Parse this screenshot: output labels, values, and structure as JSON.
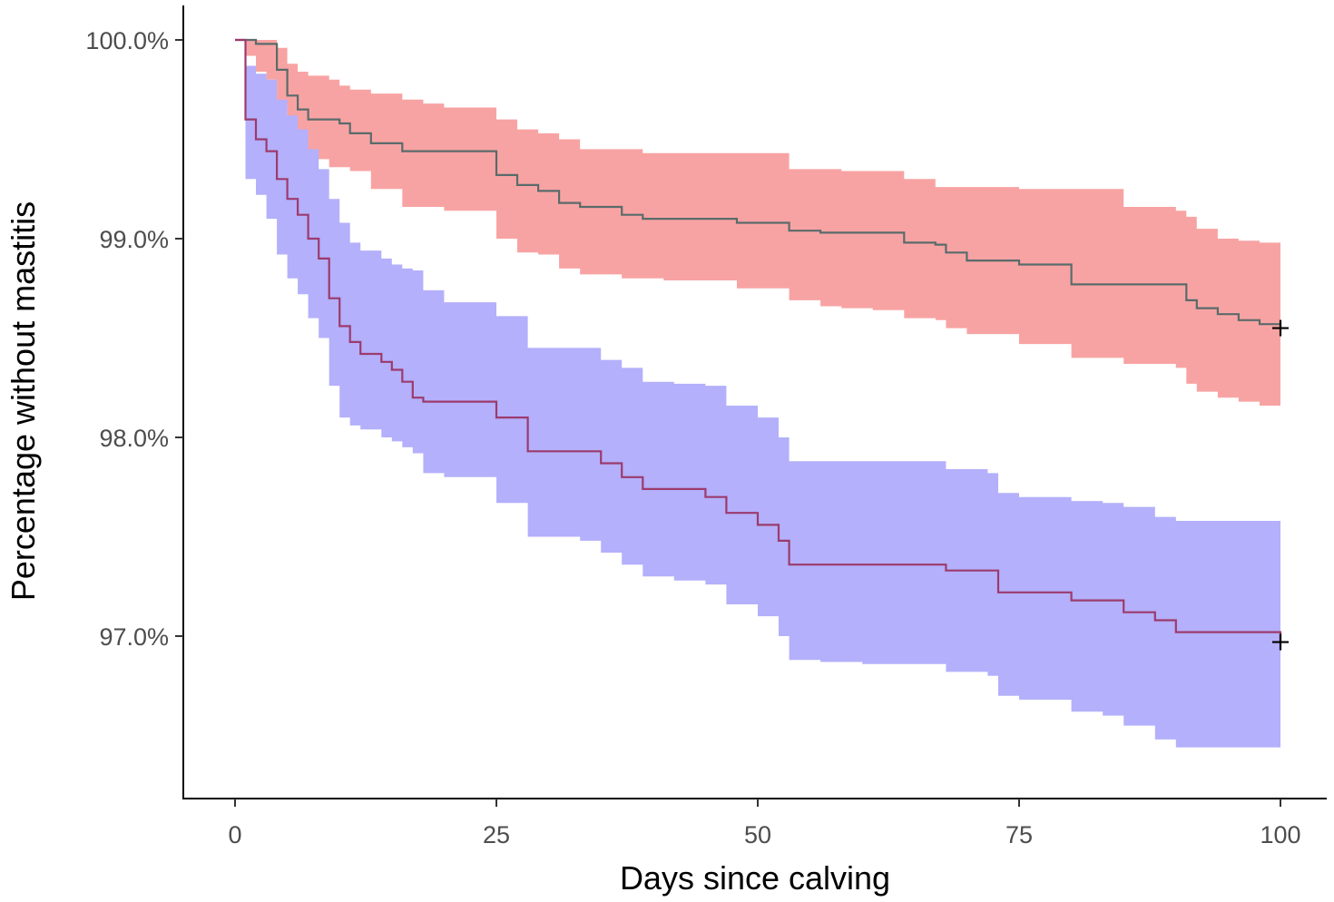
{
  "chart_data": {
    "type": "line",
    "subtype": "kaplan-meier survival curves with confidence bands",
    "title": "",
    "xlabel": "Days since calving",
    "ylabel": "Percentage without mastitis",
    "xlim": [
      -5,
      105
    ],
    "ylim": [
      96.2,
      100.2
    ],
    "xticks": [
      0,
      25,
      50,
      75,
      100
    ],
    "xtick_labels": [
      "0",
      "25",
      "50",
      "75",
      "100"
    ],
    "yticks": [
      97.0,
      98.0,
      99.0,
      100.0
    ],
    "ytick_labels": [
      "97.0%",
      "98.0%",
      "99.0%",
      "100.0%"
    ],
    "grid": false,
    "legend": "none",
    "series": [
      {
        "line_color": "#5a6b6b",
        "band_color": "#f8a3a3",
        "x": [
          0,
          1,
          2,
          3,
          4,
          5,
          6,
          7,
          9,
          10,
          11,
          13,
          16,
          18,
          20,
          25,
          27,
          29,
          31,
          33,
          37,
          39,
          41,
          48,
          53,
          56,
          58,
          61,
          64,
          67,
          68,
          70,
          75,
          80,
          85,
          90,
          91,
          92,
          94,
          96,
          98,
          100
        ],
        "y": [
          100.0,
          100.0,
          99.98,
          99.98,
          99.85,
          99.72,
          99.65,
          99.6,
          99.6,
          99.58,
          99.53,
          99.48,
          99.44,
          99.44,
          99.44,
          99.32,
          99.27,
          99.24,
          99.18,
          99.16,
          99.12,
          99.1,
          99.1,
          99.08,
          99.04,
          99.03,
          99.03,
          99.03,
          98.98,
          98.97,
          98.93,
          98.89,
          98.87,
          98.77,
          98.77,
          98.77,
          98.69,
          98.65,
          98.62,
          98.59,
          98.57,
          98.55
        ],
        "upper": [
          100.0,
          100.0,
          100.0,
          100.0,
          99.96,
          99.88,
          99.84,
          99.82,
          99.8,
          99.77,
          99.75,
          99.73,
          99.7,
          99.68,
          99.66,
          99.6,
          99.55,
          99.53,
          99.5,
          99.45,
          99.45,
          99.43,
          99.43,
          99.43,
          99.35,
          99.35,
          99.34,
          99.34,
          99.3,
          99.26,
          99.26,
          99.26,
          99.25,
          99.25,
          99.16,
          99.14,
          99.11,
          99.05,
          99.0,
          98.99,
          98.98,
          98.98
        ],
        "lower": [
          100.0,
          99.92,
          99.84,
          99.8,
          99.67,
          99.55,
          99.45,
          99.4,
          99.36,
          99.36,
          99.34,
          99.25,
          99.16,
          99.16,
          99.14,
          99.0,
          98.93,
          98.92,
          98.85,
          98.82,
          98.8,
          98.8,
          98.79,
          98.75,
          98.69,
          98.66,
          98.65,
          98.64,
          98.6,
          98.59,
          98.55,
          98.52,
          98.47,
          98.4,
          98.37,
          98.35,
          98.27,
          98.23,
          98.2,
          98.18,
          98.16,
          98.14
        ]
      },
      {
        "line_color": "#9c3a6e",
        "band_color": "#b4b0fb",
        "x": [
          0,
          1,
          2,
          3,
          4,
          5,
          6,
          7,
          8,
          9,
          10,
          11,
          12,
          14,
          15,
          16,
          17,
          18,
          20,
          25,
          28,
          33,
          35,
          37,
          39,
          42,
          45,
          47,
          50,
          52,
          53,
          56,
          60,
          68,
          72,
          73,
          75,
          80,
          83,
          85,
          88,
          90,
          100
        ],
        "y": [
          100.0,
          99.6,
          99.5,
          99.44,
          99.3,
          99.2,
          99.12,
          99.0,
          98.9,
          98.7,
          98.56,
          98.48,
          98.42,
          98.38,
          98.34,
          98.28,
          98.2,
          98.18,
          98.18,
          98.1,
          97.93,
          97.93,
          97.87,
          97.8,
          97.74,
          97.74,
          97.7,
          97.62,
          97.56,
          97.48,
          97.36,
          97.36,
          97.36,
          97.33,
          97.33,
          97.22,
          97.22,
          97.18,
          97.18,
          97.12,
          97.08,
          97.02,
          96.97
        ],
        "upper": [
          100.0,
          99.87,
          99.83,
          99.8,
          99.7,
          99.62,
          99.55,
          99.45,
          99.35,
          99.2,
          99.08,
          98.98,
          98.94,
          98.9,
          98.87,
          98.85,
          98.84,
          98.74,
          98.68,
          98.61,
          98.45,
          98.45,
          98.39,
          98.35,
          98.28,
          98.27,
          98.26,
          98.16,
          98.1,
          98.0,
          97.88,
          97.88,
          97.88,
          97.84,
          97.82,
          97.72,
          97.7,
          97.68,
          97.67,
          97.65,
          97.6,
          97.58,
          97.52
        ],
        "lower": [
          100.0,
          99.3,
          99.22,
          99.1,
          98.92,
          98.8,
          98.72,
          98.6,
          98.5,
          98.26,
          98.1,
          98.06,
          98.04,
          98.0,
          97.98,
          97.95,
          97.92,
          97.82,
          97.8,
          97.67,
          97.5,
          97.48,
          97.42,
          97.36,
          97.3,
          97.28,
          97.26,
          97.16,
          97.1,
          97.0,
          96.88,
          96.87,
          96.86,
          96.82,
          96.8,
          96.7,
          96.68,
          96.62,
          96.6,
          96.55,
          96.48,
          96.44,
          96.38
        ]
      }
    ]
  }
}
